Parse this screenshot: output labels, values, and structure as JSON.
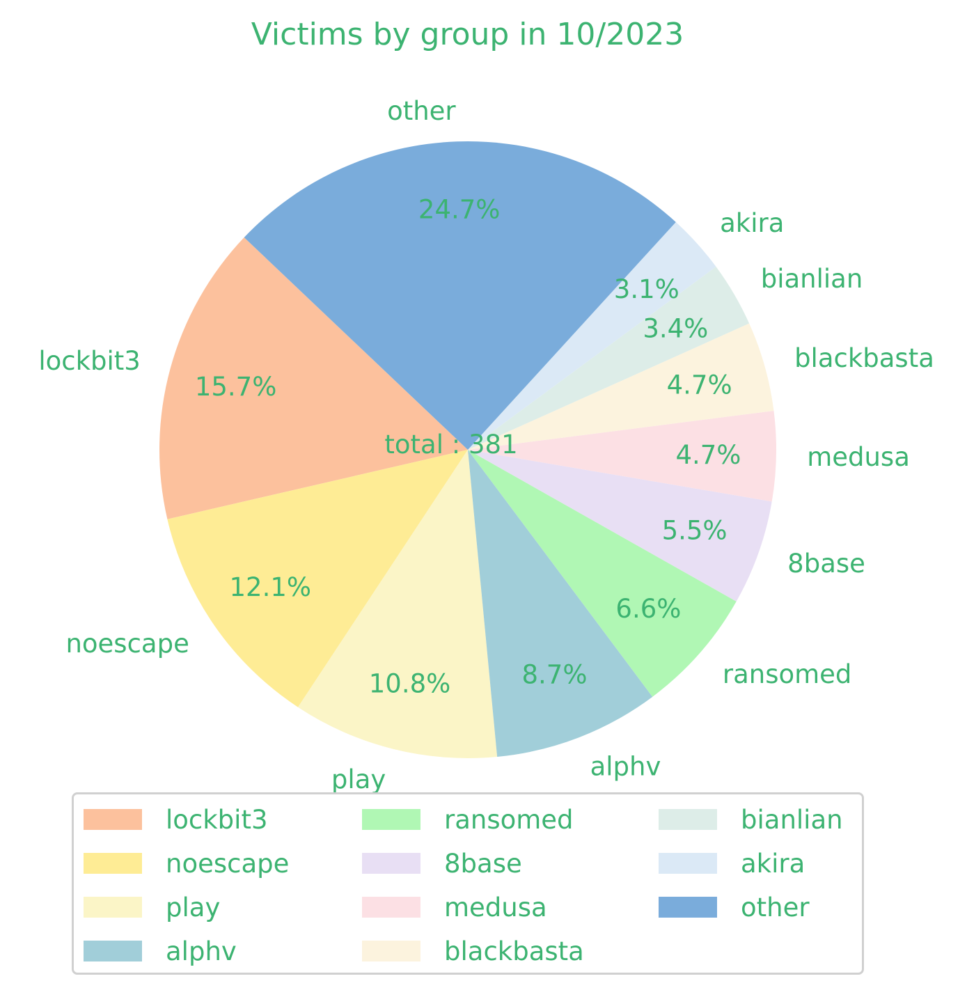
{
  "colors": {
    "text": "#3cb371"
  },
  "chart_data": {
    "type": "pie",
    "title": "Victims by group in 10/2023",
    "center_label": "total : 381",
    "slices": [
      {
        "label": "lockbit3",
        "value": 15.7,
        "pct_label": "15.7%",
        "color": "#fcc19d"
      },
      {
        "label": "noescape",
        "value": 12.1,
        "pct_label": "12.1%",
        "color": "#feec95"
      },
      {
        "label": "play",
        "value": 10.8,
        "pct_label": "10.8%",
        "color": "#fbf5c7"
      },
      {
        "label": "alphv",
        "value": 8.7,
        "pct_label": "8.7%",
        "color": "#a1ced9"
      },
      {
        "label": "ransomed",
        "value": 6.6,
        "pct_label": "6.6%",
        "color": "#b0f7b4"
      },
      {
        "label": "8base",
        "value": 5.5,
        "pct_label": "5.5%",
        "color": "#e8dff4"
      },
      {
        "label": "medusa",
        "value": 4.7,
        "pct_label": "4.7%",
        "color": "#fce0e4"
      },
      {
        "label": "blackbasta",
        "value": 4.7,
        "pct_label": "4.7%",
        "color": "#fcf3de"
      },
      {
        "label": "bianlian",
        "value": 3.4,
        "pct_label": "3.4%",
        "color": "#ddede8"
      },
      {
        "label": "akira",
        "value": 3.1,
        "pct_label": "3.1%",
        "color": "#dbe9f6"
      },
      {
        "label": "other",
        "value": 24.7,
        "pct_label": "24.7%",
        "color": "#7aacdb"
      }
    ],
    "legend_position": "bottom"
  }
}
